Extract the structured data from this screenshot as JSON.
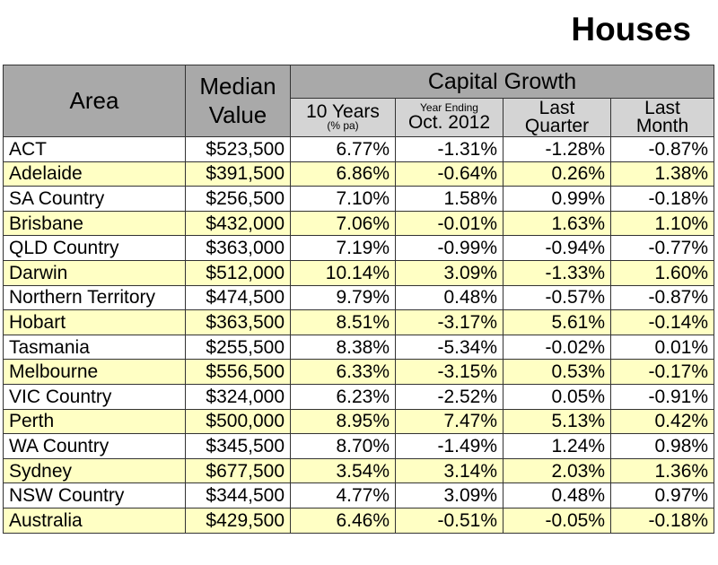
{
  "title": "Houses",
  "table": {
    "header": {
      "area": "Area",
      "median": [
        "Median",
        "Value"
      ],
      "group": "Capital Growth",
      "columns": [
        {
          "small": "",
          "lines": [
            "10 Years"
          ],
          "note": "(% pa)"
        },
        {
          "small": "Year Ending",
          "lines": [
            "Oct. 2012"
          ],
          "note": ""
        },
        {
          "small": "",
          "lines": [
            "Last",
            "Quarter"
          ],
          "note": ""
        },
        {
          "small": "",
          "lines": [
            "Last",
            "Month"
          ],
          "note": ""
        }
      ]
    },
    "rows": [
      [
        "ACT",
        "$523,500",
        "6.77%",
        "-1.31%",
        "-1.28%",
        "-0.87%"
      ],
      [
        "Adelaide",
        "$391,500",
        "6.86%",
        "-0.64%",
        "0.26%",
        "1.38%"
      ],
      [
        "SA Country",
        "$256,500",
        "7.10%",
        "1.58%",
        "0.99%",
        "-0.18%"
      ],
      [
        "Brisbane",
        "$432,000",
        "7.06%",
        "-0.01%",
        "1.63%",
        "1.10%"
      ],
      [
        "QLD Country",
        "$363,000",
        "7.19%",
        "-0.99%",
        "-0.94%",
        "-0.77%"
      ],
      [
        "Darwin",
        "$512,000",
        "10.14%",
        "3.09%",
        "-1.33%",
        "1.60%"
      ],
      [
        "Northern Territory",
        "$474,500",
        "9.79%",
        "0.48%",
        "-0.57%",
        "-0.87%"
      ],
      [
        "Hobart",
        "$363,500",
        "8.51%",
        "-3.17%",
        "5.61%",
        "-0.14%"
      ],
      [
        "Tasmania",
        "$255,500",
        "8.38%",
        "-5.34%",
        "-0.02%",
        "0.01%"
      ],
      [
        "Melbourne",
        "$556,500",
        "6.33%",
        "-3.15%",
        "0.53%",
        "-0.17%"
      ],
      [
        "VIC Country",
        "$324,000",
        "6.23%",
        "-2.52%",
        "0.05%",
        "-0.91%"
      ],
      [
        "Perth",
        "$500,000",
        "8.95%",
        "7.47%",
        "5.13%",
        "0.42%"
      ],
      [
        "WA Country",
        "$345,500",
        "8.70%",
        "-1.49%",
        "1.24%",
        "0.98%"
      ],
      [
        "Sydney",
        "$677,500",
        "3.54%",
        "3.14%",
        "2.03%",
        "1.36%"
      ],
      [
        "NSW Country",
        "$344,500",
        "4.77%",
        "3.09%",
        "0.48%",
        "0.97%"
      ],
      [
        "Australia",
        "$429,500",
        "6.46%",
        "-0.51%",
        "-0.05%",
        "-0.18%"
      ]
    ]
  }
}
